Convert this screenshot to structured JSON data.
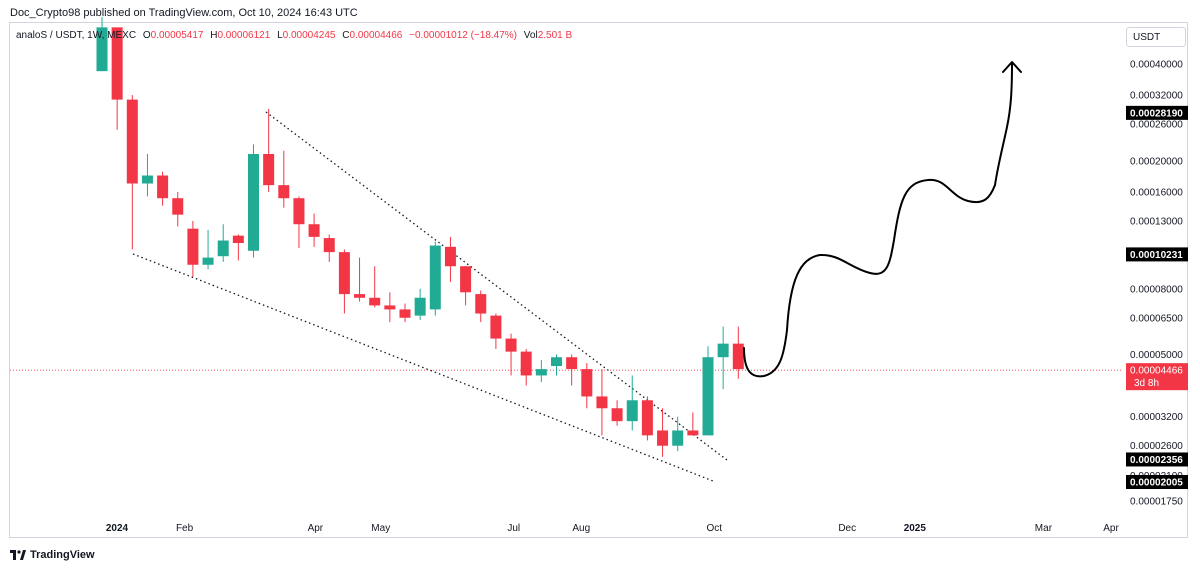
{
  "header": {
    "text": "Doc_Crypto98 published on TradingView.com, Oct 10, 2024 16:43 UTC"
  },
  "legend": {
    "symbol": "analoS / USDT, 1W, MEXC",
    "open_label": "O",
    "open": "0.00005417",
    "high_label": "H",
    "high": "0.00006121",
    "low_label": "L",
    "low": "0.00004245",
    "close_label": "C",
    "close": "0.00004466",
    "change": "−0.00001012 (−18.47%)",
    "vol_label": "Vol",
    "vol": "2.501 B"
  },
  "currency_button": "USDT",
  "footer": {
    "brand": "TradingView"
  },
  "colors": {
    "up": "#22ab94",
    "down": "#f23645",
    "text": "#131722",
    "grid_border": "#d1d4dc",
    "tag_bg": "#000000",
    "last_price": "#f23645"
  },
  "chart_data": {
    "type": "candlestick",
    "timeframe": "1W",
    "y_scale": "log",
    "y_ticks": [
      "0.00040000",
      "0.00032000",
      "0.00026000",
      "0.00020000",
      "0.00016000",
      "0.00013000",
      "0.00008000",
      "0.00006500",
      "0.00005000",
      "0.00003200",
      "0.00002600",
      "0.00002100",
      "0.00001750"
    ],
    "price_tags": [
      "0.00028190",
      "0.00010231",
      "0.00002356",
      "0.00002005"
    ],
    "last_price_tag": {
      "value": "0.00004466",
      "countdown": "3d 8h"
    },
    "x_ticks": [
      {
        "label": "2024",
        "bold": true,
        "date": "2024-01-01"
      },
      {
        "label": "Feb",
        "bold": false,
        "date": "2024-02-01"
      },
      {
        "label": "Apr",
        "bold": false,
        "date": "2024-04-01"
      },
      {
        "label": "May",
        "bold": false,
        "date": "2024-05-01"
      },
      {
        "label": "Jul",
        "bold": false,
        "date": "2024-07-01"
      },
      {
        "label": "Aug",
        "bold": false,
        "date": "2024-08-01"
      },
      {
        "label": "Oct",
        "bold": false,
        "date": "2024-10-01"
      },
      {
        "label": "Dec",
        "bold": false,
        "date": "2024-12-01"
      },
      {
        "label": "2025",
        "bold": true,
        "date": "2025-01-01"
      },
      {
        "label": "Mar",
        "bold": false,
        "date": "2025-03-01"
      },
      {
        "label": "Apr",
        "bold": false,
        "date": "2025-04-01"
      }
    ],
    "candles": [
      {
        "o": 0.00038,
        "h": 0.00056,
        "l": 0.00038,
        "c": 0.00052
      },
      {
        "o": 0.00052,
        "h": 0.00052,
        "l": 0.00025,
        "c": 0.00031
      },
      {
        "o": 0.00031,
        "h": 0.00032,
        "l": 0.000106,
        "c": 0.00017
      },
      {
        "o": 0.00017,
        "h": 0.00021,
        "l": 0.000155,
        "c": 0.00018
      },
      {
        "o": 0.00018,
        "h": 0.000185,
        "l": 0.000145,
        "c": 0.000153
      },
      {
        "o": 0.000153,
        "h": 0.00016,
        "l": 0.000125,
        "c": 0.000136
      },
      {
        "o": 0.000123,
        "h": 0.00013,
        "l": 8.7e-05,
        "c": 9.5e-05
      },
      {
        "o": 9.5e-05,
        "h": 0.000122,
        "l": 9.2e-05,
        "c": 0.0001
      },
      {
        "o": 0.000101,
        "h": 0.000127,
        "l": 9.7e-05,
        "c": 0.000113
      },
      {
        "o": 0.000117,
        "h": 0.000118,
        "l": 9.8e-05,
        "c": 0.000111
      },
      {
        "o": 0.000105,
        "h": 0.000225,
        "l": 0.0001,
        "c": 0.00021
      },
      {
        "o": 0.00021,
        "h": 0.00029,
        "l": 0.00016,
        "c": 0.000168
      },
      {
        "o": 0.000168,
        "h": 0.000215,
        "l": 0.000143,
        "c": 0.000153
      },
      {
        "o": 0.000153,
        "h": 0.000155,
        "l": 0.000107,
        "c": 0.000127
      },
      {
        "o": 0.000127,
        "h": 0.000137,
        "l": 0.000108,
        "c": 0.000116
      },
      {
        "o": 0.000115,
        "h": 0.000118,
        "l": 9.7e-05,
        "c": 0.000104
      },
      {
        "o": 0.000104,
        "h": 0.000106,
        "l": 6.7e-05,
        "c": 7.7e-05
      },
      {
        "o": 7.7e-05,
        "h": 0.0001,
        "l": 7.3e-05,
        "c": 7.5e-05
      },
      {
        "o": 7.5e-05,
        "h": 9.4e-05,
        "l": 7e-05,
        "c": 7.1e-05
      },
      {
        "o": 7.1e-05,
        "h": 7.8e-05,
        "l": 6.3e-05,
        "c": 6.9e-05
      },
      {
        "o": 6.9e-05,
        "h": 7.2e-05,
        "l": 6.3e-05,
        "c": 6.5e-05
      },
      {
        "o": 6.6e-05,
        "h": 8e-05,
        "l": 6.4e-05,
        "c": 7.5e-05
      },
      {
        "o": 6.9e-05,
        "h": 0.000112,
        "l": 6.6e-05,
        "c": 0.000109
      },
      {
        "o": 0.000108,
        "h": 0.000116,
        "l": 8.4e-05,
        "c": 9.4e-05
      },
      {
        "o": 9.4e-05,
        "h": 9.4e-05,
        "l": 7.1e-05,
        "c": 7.8e-05
      },
      {
        "o": 7.7e-05,
        "h": 7.9e-05,
        "l": 6.3e-05,
        "c": 6.7e-05
      },
      {
        "o": 6.6e-05,
        "h": 6.7e-05,
        "l": 5.2e-05,
        "c": 5.6e-05
      },
      {
        "o": 5.6e-05,
        "h": 5.8e-05,
        "l": 4.3e-05,
        "c": 5.1e-05
      },
      {
        "o": 5.1e-05,
        "h": 5.2e-05,
        "l": 4e-05,
        "c": 4.3e-05
      },
      {
        "o": 4.3e-05,
        "h": 4.8e-05,
        "l": 4.1e-05,
        "c": 4.5e-05
      },
      {
        "o": 4.6e-05,
        "h": 5e-05,
        "l": 4.3e-05,
        "c": 4.9e-05
      },
      {
        "o": 4.9e-05,
        "h": 5e-05,
        "l": 4e-05,
        "c": 4.5e-05
      },
      {
        "o": 4.5e-05,
        "h": 4.7e-05,
        "l": 3.4e-05,
        "c": 3.7e-05
      },
      {
        "o": 3.7e-05,
        "h": 4.5e-05,
        "l": 2.8e-05,
        "c": 3.4e-05
      },
      {
        "o": 3.4e-05,
        "h": 3.6e-05,
        "l": 3e-05,
        "c": 3.1e-05
      },
      {
        "o": 3.1e-05,
        "h": 4.3e-05,
        "l": 2.9e-05,
        "c": 3.6e-05
      },
      {
        "o": 3.6e-05,
        "h": 3.7e-05,
        "l": 2.7e-05,
        "c": 2.8e-05
      },
      {
        "o": 2.9e-05,
        "h": 3.4e-05,
        "l": 2.4e-05,
        "c": 2.6e-05
      },
      {
        "o": 2.6e-05,
        "h": 3.2e-05,
        "l": 2.5e-05,
        "c": 2.9e-05
      },
      {
        "o": 2.9e-05,
        "h": 3.3e-05,
        "l": 2.8e-05,
        "c": 2.8e-05
      },
      {
        "o": 2.8e-05,
        "h": 5.3e-05,
        "l": 2.8e-05,
        "c": 4.9e-05
      },
      {
        "o": 4.9e-05,
        "h": 6.1e-05,
        "l": 3.9e-05,
        "c": 5.4e-05
      },
      {
        "o": 5.4e-05,
        "h": 6.1e-05,
        "l": 4.2e-05,
        "c": 4.5e-05
      }
    ],
    "annotations": {
      "upper_trendline": "dotted",
      "lower_trendline": "dotted",
      "projection": "hand-drawn curve with arrow up"
    }
  }
}
